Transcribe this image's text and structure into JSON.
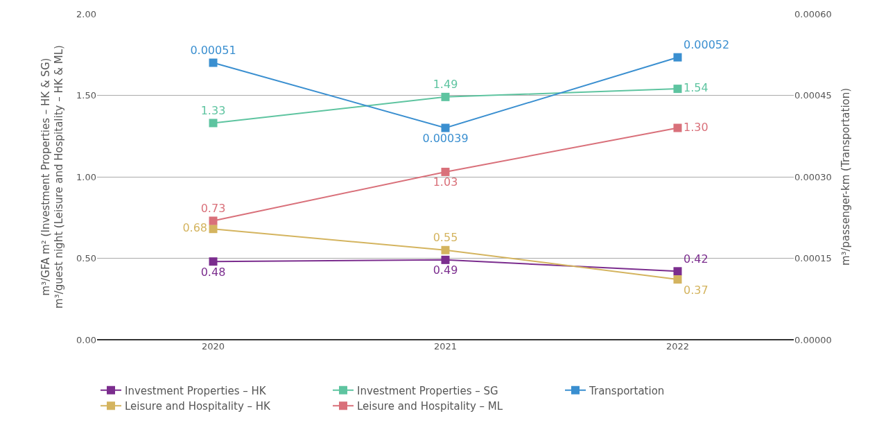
{
  "chart_data": {
    "type": "line",
    "categories": [
      "2020",
      "2021",
      "2022"
    ],
    "ylabel": "m³/GFA m² (Investment Properties – HK & SG)\nm³/guest night (Leisure and Hospitality – HK & ML)",
    "y2label": "m³/passenger-km (Transportation)",
    "ylim": [
      0,
      2
    ],
    "yticks": [
      {
        "value": 0,
        "label": "0.00"
      },
      {
        "value": 0.5,
        "label": "0.50"
      },
      {
        "value": 1,
        "label": "1.00"
      },
      {
        "value": 1.5,
        "label": "1.50"
      },
      {
        "value": 2,
        "label": "2.00"
      }
    ],
    "y2lim": [
      0,
      0.0006
    ],
    "y2ticks": [
      {
        "value": 0,
        "label": "0.00000"
      },
      {
        "value": 0.00015,
        "label": "0.00015"
      },
      {
        "value": 0.0003,
        "label": "0.00030"
      },
      {
        "value": 0.00045,
        "label": "0.00045"
      },
      {
        "value": 0.0006,
        "label": "0.00060"
      }
    ],
    "series": [
      {
        "name": "Investment Properties – HK",
        "color": "#7b2d8e",
        "values": [
          0.48,
          0.49,
          0.42
        ],
        "value_labels": [
          "0.48",
          "0.49",
          "0.42"
        ]
      },
      {
        "name": "Investment Properties – SG",
        "color": "#5ec4a0",
        "values": [
          1.33,
          1.49,
          1.54
        ],
        "value_labels": [
          "1.33",
          "1.49",
          "1.54"
        ]
      },
      {
        "name": "Transportation",
        "color": "#3a8fd0",
        "values": [
          0.00051,
          0.00039,
          0.00052
        ],
        "value_labels": [
          "0.00051",
          "0.00039",
          "0.00052"
        ],
        "axis": "y2"
      },
      {
        "name": "Leisure and Hospitality – HK",
        "color": "#d4b45f",
        "values": [
          0.68,
          0.55,
          0.37
        ],
        "value_labels": [
          "0.68",
          "0.55",
          "0.37"
        ]
      },
      {
        "name": "Leisure and Hospitality – ML",
        "color": "#d9707a",
        "values": [
          0.73,
          1.03,
          1.3
        ],
        "value_labels": [
          "0.73",
          "1.03",
          "1.30"
        ]
      }
    ],
    "grid": "y",
    "legend": "bottom",
    "marker": "square",
    "line_style": "solid"
  }
}
